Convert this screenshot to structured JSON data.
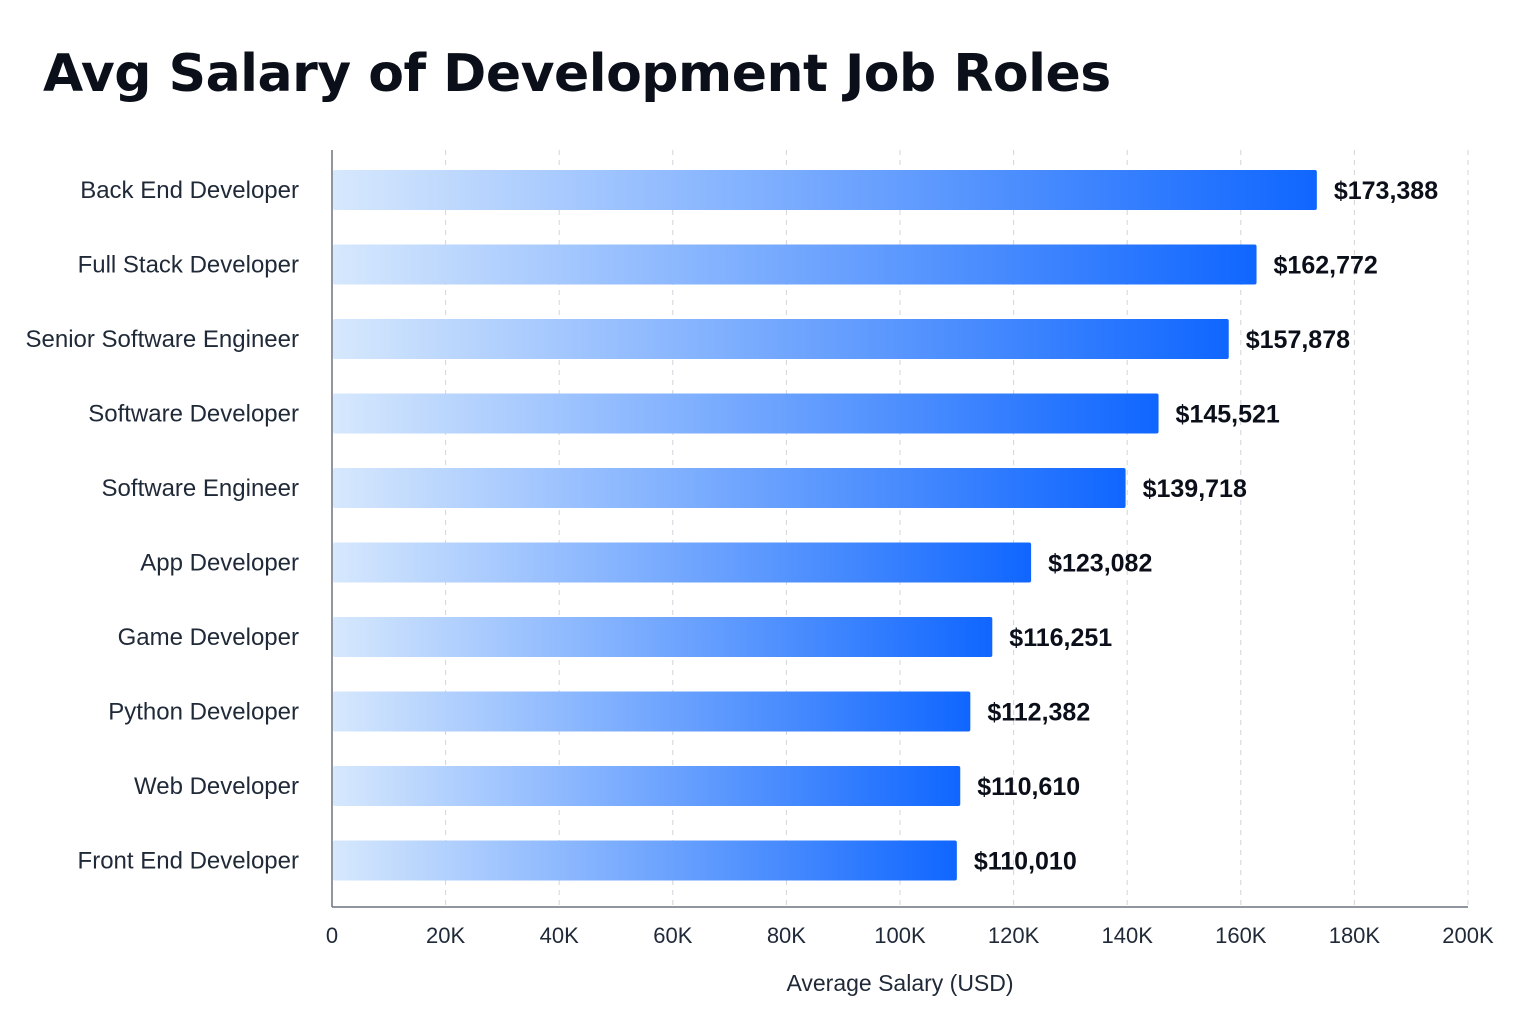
{
  "chart_data": {
    "type": "bar",
    "orientation": "horizontal",
    "title": "Avg Salary of Development Job Roles",
    "xlabel": "Average Salary (USD)",
    "ylabel": "",
    "xlim": [
      0,
      200000
    ],
    "x_ticks": [
      0,
      20000,
      40000,
      60000,
      80000,
      100000,
      120000,
      140000,
      160000,
      180000,
      200000
    ],
    "x_tick_labels": [
      "0",
      "20K",
      "40K",
      "60K",
      "80K",
      "100K",
      "120K",
      "140K",
      "160K",
      "180K",
      "200K"
    ],
    "grid": "vertical dashed",
    "categories": [
      "Back End Developer",
      "Full Stack Developer",
      "Senior Software Engineer",
      "Software Developer",
      "Software Engineer",
      "App Developer",
      "Game Developer",
      "Python Developer",
      "Web Developer",
      "Front End Developer"
    ],
    "values": [
      173388,
      162772,
      157878,
      145521,
      139718,
      123082,
      116251,
      112382,
      110610,
      110010
    ],
    "value_labels": [
      "$173,388",
      "$162,772",
      "$157,878",
      "$145,521",
      "$139,718",
      "$123,082",
      "$116,251",
      "$112,382",
      "$110,610",
      "$110,010"
    ],
    "colors": {
      "bar_start": "#d6e8fd",
      "bar_end": "#0f66ff",
      "grid": "#d1d5db",
      "axis": "#6b7280"
    }
  }
}
